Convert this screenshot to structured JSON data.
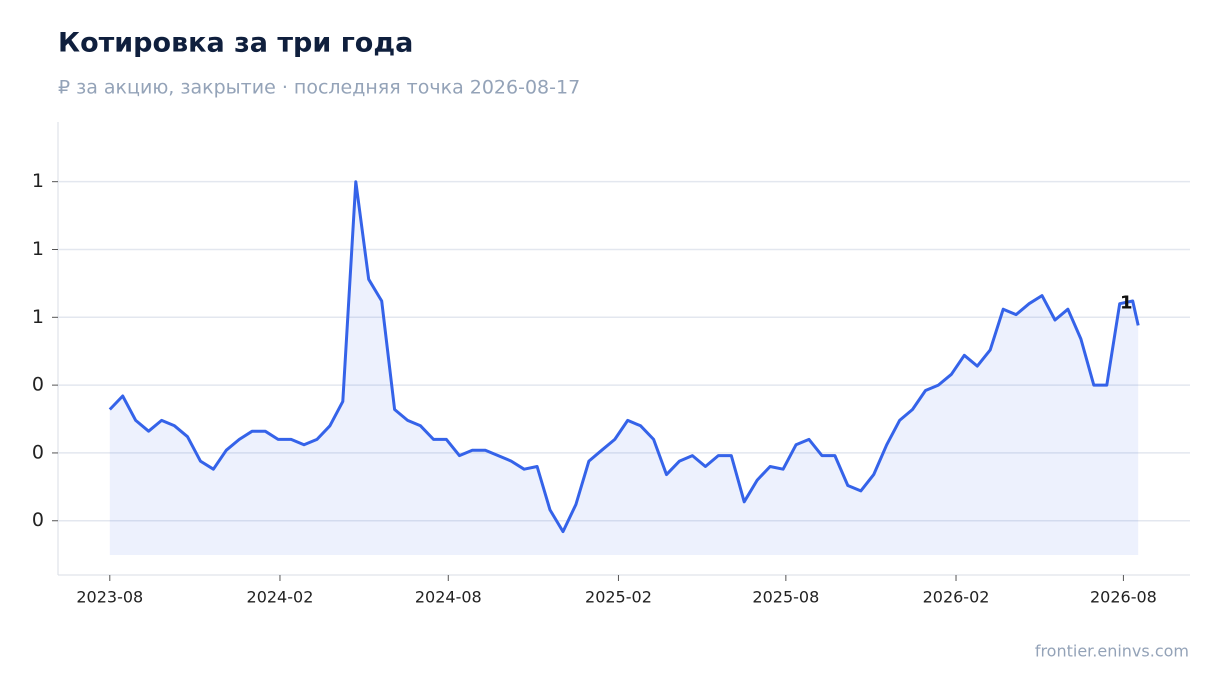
{
  "chart_data": {
    "type": "line",
    "title": "Котировка за три года",
    "subtitle": "₽ за акцию, закрытие · последняя точка 2026-08-17",
    "source": "frontier.eninvs.com",
    "x": [
      "2023-08-01",
      "2023-08-15",
      "2023-08-29",
      "2023-09-12",
      "2023-09-26",
      "2023-10-10",
      "2023-10-24",
      "2023-11-07",
      "2023-11-21",
      "2023-12-05",
      "2023-12-19",
      "2024-01-02",
      "2024-01-16",
      "2024-01-30",
      "2024-02-13",
      "2024-02-27",
      "2024-03-12",
      "2024-03-26",
      "2024-04-09",
      "2024-04-23",
      "2024-05-07",
      "2024-05-21",
      "2024-06-04",
      "2024-06-18",
      "2024-07-02",
      "2024-07-16",
      "2024-07-30",
      "2024-08-13",
      "2024-08-27",
      "2024-09-10",
      "2024-09-24",
      "2024-10-08",
      "2024-10-22",
      "2024-11-05",
      "2024-11-19",
      "2024-12-03",
      "2024-12-17",
      "2024-12-31",
      "2025-01-14",
      "2025-01-28",
      "2025-02-11",
      "2025-02-25",
      "2025-03-11",
      "2025-03-25",
      "2025-04-08",
      "2025-04-22",
      "2025-05-06",
      "2025-05-20",
      "2025-06-03",
      "2025-06-17",
      "2025-07-01",
      "2025-07-15",
      "2025-07-29",
      "2025-08-12",
      "2025-08-26",
      "2025-09-09",
      "2025-09-23",
      "2025-10-07",
      "2025-10-21",
      "2025-11-04",
      "2025-11-18",
      "2025-12-02",
      "2025-12-16",
      "2025-12-30",
      "2026-01-13",
      "2026-01-27",
      "2026-02-10",
      "2026-02-24",
      "2026-03-10",
      "2026-03-24",
      "2026-04-07",
      "2026-04-21",
      "2026-05-05",
      "2026-05-19",
      "2026-06-02",
      "2026-06-16",
      "2026-06-30",
      "2026-07-14",
      "2026-07-28",
      "2026-08-11",
      "2026-08-17"
    ],
    "series": [
      {
        "name": "Котировка",
        "color": "#3563e9",
        "values": [
          0.41,
          0.46,
          0.37,
          0.33,
          0.37,
          0.35,
          0.31,
          0.22,
          0.19,
          0.26,
          0.3,
          0.33,
          0.33,
          0.3,
          0.3,
          0.28,
          0.3,
          0.35,
          0.44,
          1.25,
          0.89,
          0.81,
          0.41,
          0.37,
          0.35,
          0.3,
          0.3,
          0.24,
          0.26,
          0.26,
          0.24,
          0.22,
          0.19,
          0.2,
          0.04,
          -0.04,
          0.06,
          0.22,
          0.26,
          0.3,
          0.37,
          0.35,
          0.3,
          0.17,
          0.22,
          0.24,
          0.2,
          0.24,
          0.24,
          0.07,
          0.15,
          0.2,
          0.19,
          0.28,
          0.3,
          0.24,
          0.24,
          0.13,
          0.11,
          0.17,
          0.28,
          0.37,
          0.41,
          0.48,
          0.5,
          0.54,
          0.61,
          0.57,
          0.63,
          0.78,
          0.76,
          0.8,
          0.83,
          0.74,
          0.78,
          0.67,
          0.5,
          0.5,
          0.8,
          0.81,
          0.72
        ]
      }
    ],
    "last_label": "1",
    "xlim": [
      "2023-06-06",
      "2026-10-12"
    ],
    "xticks": [
      {
        "value": "2023-08-01",
        "label": "2023-08"
      },
      {
        "value": "2024-02-01",
        "label": "2024-02"
      },
      {
        "value": "2024-08-01",
        "label": "2024-08"
      },
      {
        "value": "2025-02-01",
        "label": "2025-02"
      },
      {
        "value": "2025-08-01",
        "label": "2025-08"
      },
      {
        "value": "2026-02-01",
        "label": "2026-02"
      },
      {
        "value": "2026-08-01",
        "label": "2026-08"
      }
    ],
    "ylim": [
      -0.2,
      1.47
    ],
    "yticks": [
      {
        "value": 0,
        "label": "0"
      },
      {
        "value": 0.25,
        "label": "0"
      },
      {
        "value": 0.5,
        "label": "0"
      },
      {
        "value": 0.75,
        "label": "1"
      },
      {
        "value": 1,
        "label": "1"
      },
      {
        "value": 1.25,
        "label": "1"
      }
    ],
    "grid": true
  }
}
